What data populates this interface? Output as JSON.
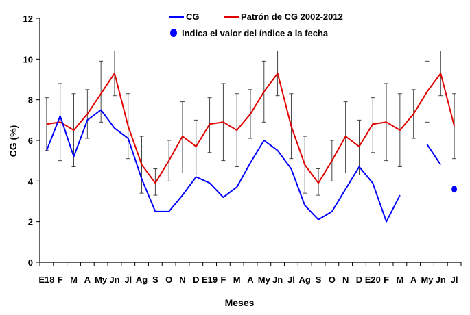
{
  "chart_data": {
    "type": "line",
    "xlabel": "Meses",
    "ylabel": "CG (%)",
    "ylim": [
      0,
      12
    ],
    "yticks": [
      "0",
      "2",
      "4",
      "6",
      "8",
      "10",
      "12"
    ],
    "categories": [
      "E18",
      "F",
      "M",
      "A",
      "My",
      "Jn",
      "Jl",
      "Ag",
      "S",
      "O",
      "N",
      "D",
      "E19",
      "F",
      "M",
      "A",
      "My",
      "Jn",
      "Jl",
      "Ag",
      "S",
      "O",
      "N",
      "D",
      "E20",
      "F",
      "M",
      "A",
      "My",
      "Jn",
      "Jl"
    ],
    "legend": {
      "position": "top-center",
      "cg_label": "CG",
      "pattern_label": "Patrón  de CG 2002-2012",
      "dot_label": "Indica el valor del índice a la fecha"
    },
    "series": [
      {
        "name": "CG",
        "color": "#0000ff",
        "values": [
          5.5,
          7.2,
          5.2,
          7.0,
          7.5,
          6.6,
          6.1,
          4.1,
          2.5,
          2.5,
          3.3,
          4.2,
          3.9,
          3.2,
          3.7,
          4.9,
          6.0,
          5.5,
          4.6,
          2.8,
          2.1,
          2.5,
          3.6,
          4.7,
          3.9,
          2.0,
          3.3,
          null,
          5.8,
          4.8,
          null
        ]
      },
      {
        "name": "Patrón  de CG 2002-2012",
        "color": "#e00000",
        "values": [
          6.8,
          6.9,
          6.5,
          7.3,
          8.3,
          9.3,
          6.7,
          4.8,
          3.9,
          5.0,
          6.2,
          5.7,
          6.8,
          6.9,
          6.5,
          7.3,
          8.4,
          9.3,
          6.7,
          4.8,
          3.9,
          5.0,
          6.2,
          5.7,
          6.8,
          6.9,
          6.5,
          7.3,
          8.4,
          9.3,
          6.7
        ],
        "error_low": [
          5.5,
          5.0,
          4.7,
          6.1,
          6.9,
          8.2,
          5.1,
          3.4,
          3.3,
          4.0,
          4.4,
          4.3,
          5.4,
          5.0,
          4.7,
          6.1,
          6.9,
          8.2,
          5.1,
          3.4,
          3.3,
          4.0,
          4.4,
          4.3,
          5.4,
          5.0,
          4.7,
          6.1,
          6.9,
          8.2,
          5.1
        ],
        "error_high": [
          8.1,
          8.8,
          8.3,
          8.5,
          9.9,
          10.4,
          8.3,
          6.2,
          4.6,
          6.0,
          7.9,
          7.0,
          8.1,
          8.8,
          8.3,
          8.5,
          9.9,
          10.4,
          8.3,
          6.2,
          4.6,
          6.0,
          7.9,
          7.0,
          8.1,
          8.8,
          8.3,
          8.5,
          9.9,
          10.4,
          8.3
        ]
      }
    ],
    "current_point": {
      "category": "Jl",
      "index": 30,
      "value": 3.6,
      "color": "#0000ff"
    },
    "grid": false
  }
}
